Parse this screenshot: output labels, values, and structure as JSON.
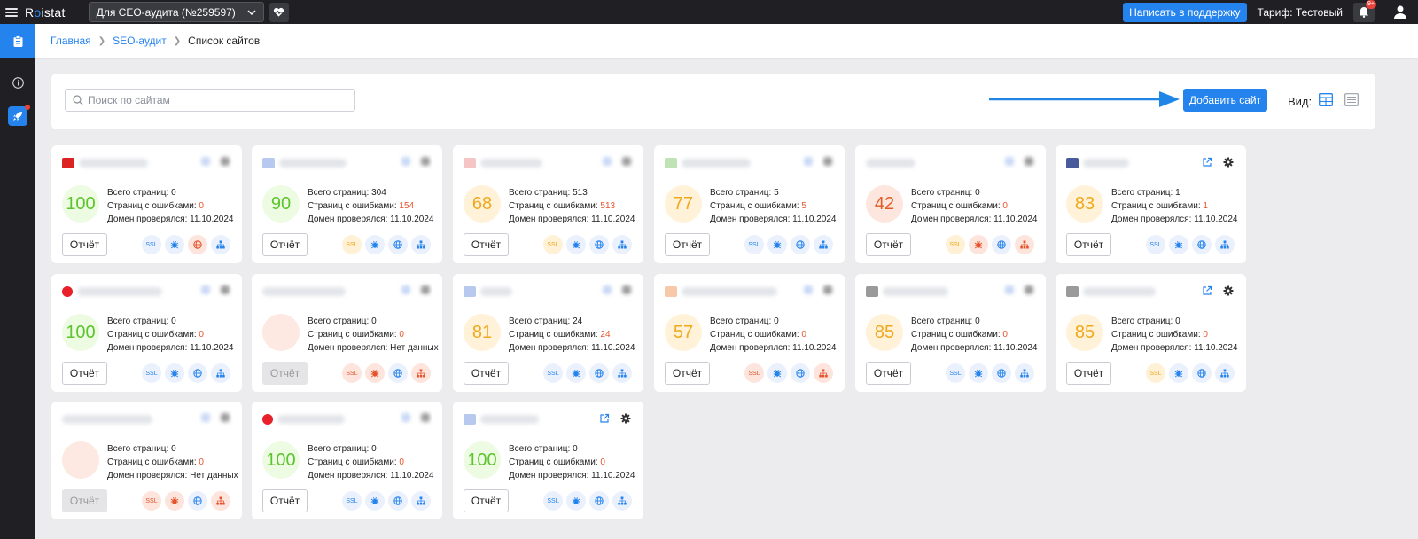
{
  "topbar": {
    "logo": "Roistat",
    "project": "Для CEO-аудита (№259597)",
    "support_button": "Написать в поддержку",
    "tariff": "Тариф: Тестовый",
    "notifications_badge": "9+"
  },
  "breadcrumb": {
    "home": "Главная",
    "seo": "SEO-аудит",
    "current": "Список сайтов"
  },
  "toolbar": {
    "search_placeholder": "Поиск по сайтам",
    "add_site": "Добавить сайт",
    "view_label": "Вид:"
  },
  "labels": {
    "total_pages": "Всего страниц:",
    "pages_with_errors": "Страниц с ошибками:",
    "domain_checked": "Домен проверялся:",
    "report": "Отчёт",
    "ssl": "SSL"
  },
  "colors": {
    "accent": "#2583ee",
    "good": "#5cc42d",
    "warning": "#f0a81d",
    "error": "#e8532a"
  },
  "sites": [
    {
      "score": "100",
      "level": "green",
      "total": "0",
      "errors": "0",
      "checked": "11.10.2024",
      "chips": [
        "b",
        "b",
        "r",
        "b"
      ],
      "favicon": "by",
      "report_enabled": true
    },
    {
      "score": "90",
      "level": "green",
      "total": "304",
      "errors": "154",
      "checked": "11.10.2024",
      "chips": [
        "y",
        "b",
        "b",
        "b"
      ],
      "favicon": "blue",
      "report_enabled": true
    },
    {
      "score": "68",
      "level": "yellow",
      "total": "513",
      "errors": "513",
      "checked": "11.10.2024",
      "chips": [
        "y",
        "b",
        "b",
        "b"
      ],
      "favicon": "pink",
      "report_enabled": true
    },
    {
      "score": "77",
      "level": "yellow",
      "total": "5",
      "errors": "5",
      "checked": "11.10.2024",
      "chips": [
        "b",
        "b",
        "b",
        "b"
      ],
      "favicon": "green",
      "report_enabled": true
    },
    {
      "score": "42",
      "level": "red",
      "total": "0",
      "errors": "0",
      "checked": "11.10.2024",
      "chips": [
        "y",
        "r",
        "b",
        "r"
      ],
      "favicon": "none",
      "report_enabled": true
    },
    {
      "score": "83",
      "level": "yellow",
      "total": "1",
      "errors": "1",
      "checked": "11.10.2024",
      "chips": [
        "b",
        "b",
        "b",
        "b"
      ],
      "favicon": "navy",
      "report_enabled": true
    },
    {
      "score": "100",
      "level": "green",
      "total": "0",
      "errors": "0",
      "checked": "11.10.2024",
      "chips": [
        "b",
        "b",
        "b",
        "b"
      ],
      "favicon": "red",
      "report_enabled": true
    },
    {
      "score": "",
      "level": "empty",
      "total": "0",
      "errors": "0",
      "checked": "Нет данных",
      "chips": [
        "r",
        "r",
        "b",
        "r"
      ],
      "favicon": "none",
      "report_enabled": false
    },
    {
      "score": "81",
      "level": "yellow",
      "total": "24",
      "errors": "24",
      "checked": "11.10.2024",
      "chips": [
        "b",
        "b",
        "b",
        "b"
      ],
      "favicon": "blue",
      "report_enabled": true
    },
    {
      "score": "57",
      "level": "yellow",
      "total": "0",
      "errors": "0",
      "checked": "11.10.2024",
      "chips": [
        "r",
        "b",
        "b",
        "r"
      ],
      "favicon": "peach",
      "report_enabled": true
    },
    {
      "score": "85",
      "level": "yellow",
      "total": "0",
      "errors": "0",
      "checked": "11.10.2024",
      "chips": [
        "b",
        "b",
        "b",
        "b"
      ],
      "favicon": "gray",
      "report_enabled": true
    },
    {
      "score": "85",
      "level": "yellow",
      "total": "0",
      "errors": "0",
      "checked": "11.10.2024",
      "chips": [
        "y",
        "b",
        "b",
        "b"
      ],
      "favicon": "gray",
      "report_enabled": true
    },
    {
      "score": "",
      "level": "empty",
      "total": "0",
      "errors": "0",
      "checked": "Нет данных",
      "chips": [
        "r",
        "r",
        "b",
        "r"
      ],
      "favicon": "none",
      "report_enabled": false
    },
    {
      "score": "100",
      "level": "green",
      "total": "0",
      "errors": "0",
      "checked": "11.10.2024",
      "chips": [
        "b",
        "b",
        "b",
        "b"
      ],
      "favicon": "red",
      "report_enabled": true
    },
    {
      "score": "100",
      "level": "green",
      "total": "0",
      "errors": "0",
      "checked": "11.10.2024",
      "chips": [
        "b",
        "b",
        "b",
        "b"
      ],
      "favicon": "blue",
      "report_enabled": true
    }
  ]
}
